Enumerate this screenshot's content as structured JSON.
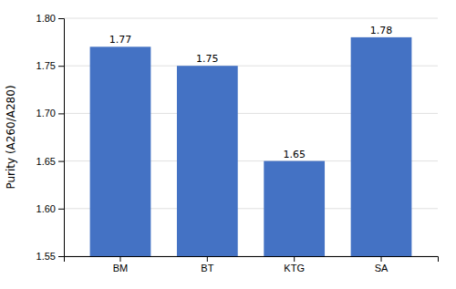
{
  "chart_data": {
    "type": "bar",
    "categories": [
      "BM",
      "BT",
      "KTG",
      "SA"
    ],
    "values": [
      1.77,
      1.75,
      1.65,
      1.78
    ],
    "color": "#4472C4",
    "ylabel": "Purity (A260/A280)",
    "ylim": [
      1.55,
      1.8
    ],
    "yticks": [
      1.55,
      {
        "value": 1.6,
        "label": "1.60"
      },
      1.65,
      {
        "value": 1.7,
        "label": "1.70"
      },
      1.75,
      {
        "value": 1.8,
        "label": "1.80"
      }
    ],
    "grid": true,
    "data_labels": true
  }
}
